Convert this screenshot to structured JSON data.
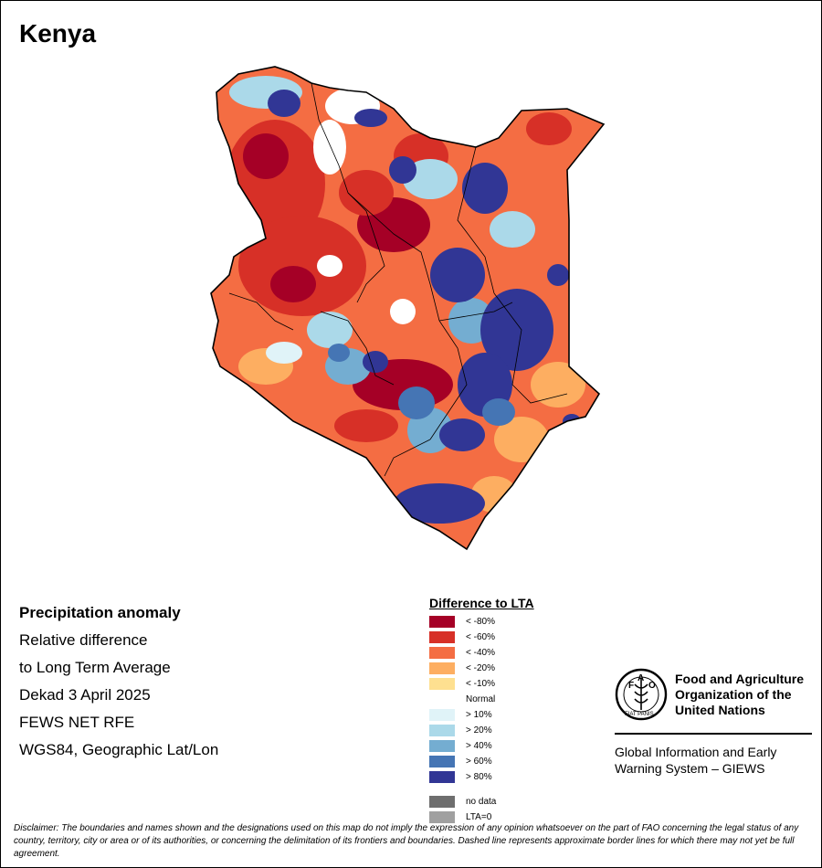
{
  "title": "Kenya",
  "info_lines": [
    "Precipitation anomaly",
    "Relative difference",
    "to Long Term Average",
    "Dekad 3 April 2025",
    "FEWS NET RFE",
    "WGS84, Geographic Lat/Lon"
  ],
  "legend": {
    "title": "Difference to LTA",
    "classes": [
      {
        "label": "< -80%",
        "color": "#a50026"
      },
      {
        "label": "< -60%",
        "color": "#d73027"
      },
      {
        "label": "< -40%",
        "color": "#f46d43"
      },
      {
        "label": "< -20%",
        "color": "#fdae61"
      },
      {
        "label": "< -10%",
        "color": "#fee090"
      },
      {
        "label": "Normal",
        "color": "#ffffff"
      },
      {
        "label": "> 10%",
        "color": "#e0f3f8"
      },
      {
        "label": "> 20%",
        "color": "#abd9e9"
      },
      {
        "label": "> 40%",
        "color": "#74add1"
      },
      {
        "label": "> 60%",
        "color": "#4575b4"
      },
      {
        "label": "> 80%",
        "color": "#313695"
      }
    ],
    "extra": [
      {
        "label": "no data",
        "color": "#6e6e6e"
      },
      {
        "label": "LTA=0",
        "color": "#a0a0a0"
      }
    ]
  },
  "fao": {
    "logo_text": "FAO",
    "logo_motto": "FIAT PANIS",
    "name_lines": [
      "Food and Agriculture",
      "Organization of the",
      "United Nations"
    ],
    "system_lines": [
      "Global Information and Early",
      "Warning System – GIEWS"
    ]
  },
  "disclaimer": "Disclaimer: The boundaries and names shown and the designations used on this map do not imply the expression of any opinion whatsoever on the part of FAO concerning the legal status of any country, territory, city or area or of its authorities, or concerning the delimitation of its frontiers and boundaries. Dashed line represents approximate border lines for which there may not yet be full agreement."
}
